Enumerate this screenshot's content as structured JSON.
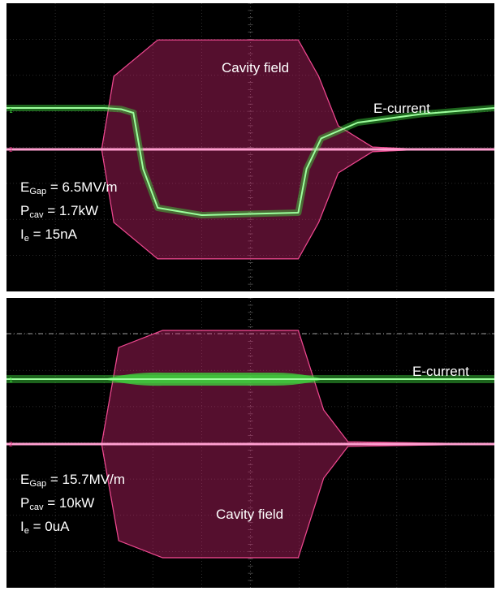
{
  "chart_data": [
    {
      "type": "line",
      "panel": "top",
      "annotations": {
        "cavity_label": "Cavity field",
        "current_label": "E-current"
      },
      "params": {
        "e_sym": "E",
        "e_sub": "Gap",
        "e_val": "= 6.5MV/m",
        "p_sym": "P",
        "p_sub": "cav",
        "p_val": "= 1.7kW",
        "i_sym": "I",
        "i_sub": "e",
        "i_val": "= 15nA"
      },
      "channels": {
        "ch1": "1",
        "ch2": "2"
      },
      "grid": true,
      "series": [
        {
          "name": "Cavity field",
          "color": "#e0287a",
          "points": [
            [
              0,
              0
            ],
            [
              1.95,
              0
            ],
            [
              2.2,
              0.62
            ],
            [
              3.1,
              0.93
            ],
            [
              5.98,
              0.93
            ],
            [
              6.4,
              0.62
            ],
            [
              6.8,
              0.2
            ],
            [
              7.5,
              0.02
            ],
            [
              8.5,
              0
            ],
            [
              10,
              0
            ]
          ]
        },
        {
          "name": "E-current",
          "color": "#3ddb3d",
          "points": [
            [
              0,
              0
            ],
            [
              2.0,
              0
            ],
            [
              2.35,
              -0.01
            ],
            [
              2.6,
              -0.04
            ],
            [
              2.8,
              -0.5
            ],
            [
              3.1,
              -0.82
            ],
            [
              4.0,
              -0.88
            ],
            [
              5.98,
              -0.86
            ],
            [
              6.15,
              -0.5
            ],
            [
              6.45,
              -0.25
            ],
            [
              7.2,
              -0.12
            ],
            [
              8.5,
              -0.05
            ],
            [
              10,
              0
            ]
          ]
        }
      ]
    },
    {
      "type": "line",
      "panel": "bottom",
      "annotations": {
        "cavity_label": "Cavity field",
        "current_label": "E-current"
      },
      "params": {
        "e_sym": "E",
        "e_sub": "Gap",
        "e_val": "= 15.7MV/m",
        "p_sym": "P",
        "p_sub": "cav",
        "p_val": "= 10kW",
        "i_sym": "I",
        "i_sub": "e",
        "i_val": "= 0uA"
      },
      "channels": {
        "ch1": "1",
        "ch2": "2"
      },
      "grid": true,
      "series": [
        {
          "name": "Cavity field",
          "color": "#e0287a",
          "points": [
            [
              0,
              0
            ],
            [
              1.95,
              0
            ],
            [
              2.3,
              0.85
            ],
            [
              3.2,
              1.0
            ],
            [
              5.98,
              1.0
            ],
            [
              6.5,
              0.3
            ],
            [
              7.0,
              0.02
            ],
            [
              10,
              0
            ]
          ]
        },
        {
          "name": "E-current",
          "color": "#3ddb3d",
          "points": [
            [
              0,
              0
            ],
            [
              2.0,
              0
            ],
            [
              2.5,
              0.0
            ],
            [
              6.0,
              0.0
            ],
            [
              6.5,
              0
            ],
            [
              10,
              0
            ]
          ]
        }
      ]
    }
  ]
}
